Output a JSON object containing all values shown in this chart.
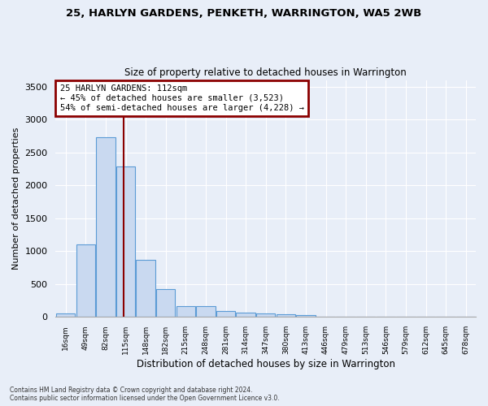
{
  "title": "25, HARLYN GARDENS, PENKETH, WARRINGTON, WA5 2WB",
  "subtitle": "Size of property relative to detached houses in Warrington",
  "xlabel": "Distribution of detached houses by size in Warrington",
  "ylabel": "Number of detached properties",
  "bar_values": [
    50,
    1100,
    2730,
    2290,
    870,
    420,
    170,
    160,
    90,
    60,
    55,
    40,
    30,
    0,
    0,
    0,
    0,
    0,
    0,
    0,
    0
  ],
  "x_labels": [
    "16sqm",
    "49sqm",
    "82sqm",
    "115sqm",
    "148sqm",
    "182sqm",
    "215sqm",
    "248sqm",
    "281sqm",
    "314sqm",
    "347sqm",
    "380sqm",
    "413sqm",
    "446sqm",
    "479sqm",
    "513sqm",
    "546sqm",
    "579sqm",
    "612sqm",
    "645sqm",
    "678sqm"
  ],
  "bar_color": "#c9d9f0",
  "bar_edge_color": "#5b9bd5",
  "vline_color": "#8b0000",
  "annotation_text": "25 HARLYN GARDENS: 112sqm\n← 45% of detached houses are smaller (3,523)\n54% of semi-detached houses are larger (4,228) →",
  "annotation_box_color": "#8b0000",
  "annotation_bg": "white",
  "ylim": [
    0,
    3600
  ],
  "yticks": [
    0,
    500,
    1000,
    1500,
    2000,
    2500,
    3000,
    3500
  ],
  "footer_text": "Contains HM Land Registry data © Crown copyright and database right 2024.\nContains public sector information licensed under the Open Government Licence v3.0.",
  "bg_color": "#e8eef8",
  "plot_bg_color": "#e8eef8",
  "grid_color": "#ffffff"
}
